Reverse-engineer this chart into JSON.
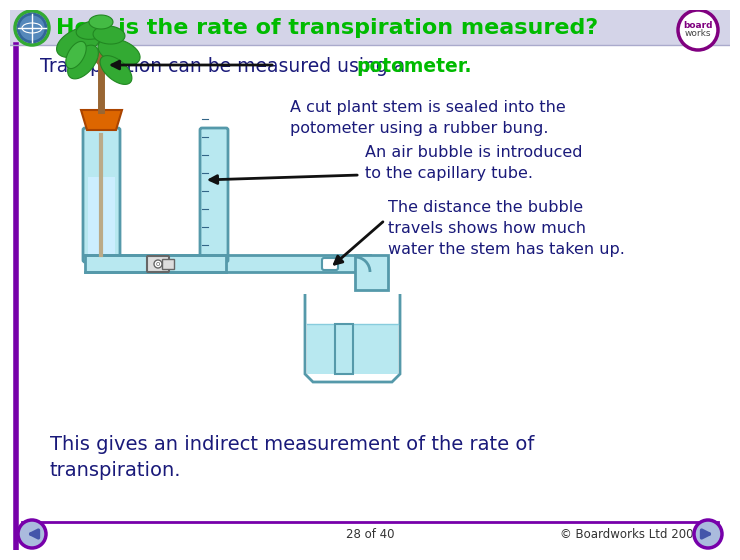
{
  "title": "How is the rate of transpiration measured?",
  "title_color": "#00bb00",
  "title_bg": "#d4d4e8",
  "body_bg": "#ffffff",
  "border_color": "#7700aa",
  "main_text": "Transpiration can be measured using a ",
  "main_text_keyword": "potometer",
  "main_text_color": "#1a1a7a",
  "keyword_color": "#00bb00",
  "bullet1_text": "A cut plant stem is sealed into the\npotometer using a rubber bung.",
  "bullet2_text": "An air bubble is introduced\nto the capillary tube.",
  "bullet3_text": "The distance the bubble\ntravels shows how much\nwater the stem has taken up.",
  "footer_text": "This gives an indirect measurement of the rate of\ntranspiration.",
  "footer_color": "#1a1a7a",
  "page_text": "28 of 40",
  "copyright_text": "© Boardworks Ltd 2007",
  "bottom_line_color": "#7700aa",
  "tube_fill": "#b8e8f0",
  "tube_edge": "#5599aa",
  "bung_color": "#dd6600",
  "stem_color": "#996633",
  "leaf_color": "#33aa33",
  "leaf_dark": "#228822",
  "arrow_color": "#111111",
  "valve_body": "#dddddd",
  "valve_edge": "#666666"
}
